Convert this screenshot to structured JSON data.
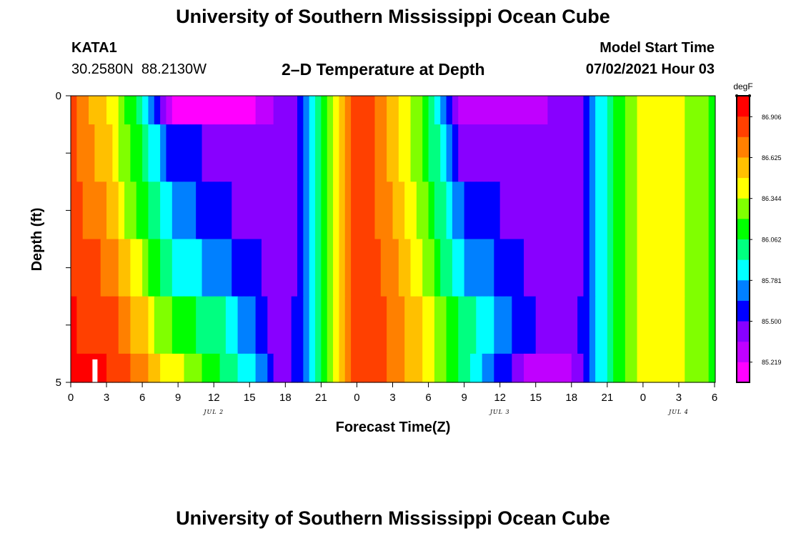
{
  "header": {
    "title": "University of Southern Mississippi Ocean Cube",
    "station_id": "KATA1",
    "station_coords": "30.2580N  88.2130W",
    "plot_title": "2–D Temperature at Depth",
    "model_start_label": "Model Start Time",
    "model_start_value": "07/02/2021 Hour 03"
  },
  "footer": {
    "title": "University of Southern Mississippi Ocean Cube"
  },
  "chart_data": {
    "type": "heatmap",
    "title": "2–D Temperature at Depth",
    "xlabel": "Forecast Time(Z)",
    "ylabel": "Depth (ft)",
    "xlim": [
      0,
      54
    ],
    "ylim": [
      5,
      0
    ],
    "x_tick_values": [
      0,
      3,
      6,
      9,
      12,
      15,
      18,
      21,
      24,
      27,
      30,
      33,
      36,
      39,
      42,
      45,
      48,
      51,
      54
    ],
    "x_tick_labels": [
      "0",
      "3",
      "6",
      "9",
      "12",
      "15",
      "18",
      "21",
      "0",
      "3",
      "6",
      "9",
      "12",
      "15",
      "18",
      "21",
      "0",
      "3",
      "6"
    ],
    "y_tick_values": [
      0,
      1,
      2,
      3,
      4,
      5
    ],
    "y_tick_labels": [
      "0",
      "",
      "",
      "",
      "",
      "5"
    ],
    "date_labels": [
      {
        "x": 12,
        "text": "JUL 2"
      },
      {
        "x": 36,
        "text": "JUL 3"
      },
      {
        "x": 51,
        "text": "JUL 4"
      }
    ],
    "depth_layers": [
      {
        "depth_range": [
          0.0,
          0.5
        ],
        "segments": [
          [
            0,
            86.8
          ],
          [
            3,
            86.5
          ],
          [
            6,
            85.98
          ],
          [
            7.5,
            85.45
          ],
          [
            8.5,
            85.2
          ],
          [
            12,
            85.18
          ],
          [
            15,
            85.2
          ],
          [
            17.5,
            85.38
          ],
          [
            19.5,
            85.55
          ],
          [
            20,
            85.8
          ],
          [
            21,
            86.05
          ],
          [
            24,
            86.9
          ],
          [
            27,
            86.6
          ],
          [
            30,
            86.1
          ],
          [
            31.5,
            85.65
          ],
          [
            32,
            85.4
          ],
          [
            33,
            85.33
          ],
          [
            39,
            85.35
          ],
          [
            42,
            85.38
          ],
          [
            43.5,
            85.6
          ],
          [
            44.5,
            85.85
          ],
          [
            46,
            86.15
          ],
          [
            48,
            86.4
          ],
          [
            51,
            86.38
          ],
          [
            54,
            86.15
          ]
        ]
      },
      {
        "depth_range": [
          0.5,
          1.5
        ],
        "segments": [
          [
            0,
            86.82
          ],
          [
            3,
            86.55
          ],
          [
            4.5,
            86.3
          ],
          [
            6,
            86.05
          ],
          [
            7.5,
            85.75
          ],
          [
            8.5,
            85.55
          ],
          [
            12,
            85.48
          ],
          [
            15,
            85.4
          ],
          [
            17.5,
            85.38
          ],
          [
            19.5,
            85.55
          ],
          [
            20,
            85.8
          ],
          [
            21,
            86.05
          ],
          [
            24,
            86.9
          ],
          [
            27,
            86.6
          ],
          [
            30,
            86.1
          ],
          [
            31.5,
            85.75
          ],
          [
            32,
            85.55
          ],
          [
            33,
            85.45
          ],
          [
            39,
            85.38
          ],
          [
            42,
            85.38
          ],
          [
            43.5,
            85.6
          ],
          [
            44.5,
            85.85
          ],
          [
            46,
            86.15
          ],
          [
            48,
            86.4
          ],
          [
            51,
            86.38
          ],
          [
            54,
            86.15
          ]
        ]
      },
      {
        "depth_range": [
          1.5,
          2.5
        ],
        "segments": [
          [
            0,
            86.85
          ],
          [
            3,
            86.65
          ],
          [
            5,
            86.3
          ],
          [
            6.5,
            86.05
          ],
          [
            8,
            85.85
          ],
          [
            9,
            85.75
          ],
          [
            12,
            85.55
          ],
          [
            15,
            85.45
          ],
          [
            17.5,
            85.38
          ],
          [
            19.5,
            85.55
          ],
          [
            20,
            85.8
          ],
          [
            21,
            86.05
          ],
          [
            24,
            86.92
          ],
          [
            27,
            86.65
          ],
          [
            30,
            86.2
          ],
          [
            31.5,
            85.9
          ],
          [
            33,
            85.65
          ],
          [
            36,
            85.5
          ],
          [
            39,
            85.4
          ],
          [
            42,
            85.38
          ],
          [
            43.5,
            85.6
          ],
          [
            44.5,
            85.85
          ],
          [
            46,
            86.15
          ],
          [
            48,
            86.4
          ],
          [
            51,
            86.38
          ],
          [
            54,
            86.15
          ]
        ]
      },
      {
        "depth_range": [
          2.5,
          3.5
        ],
        "segments": [
          [
            0,
            86.88
          ],
          [
            3,
            86.75
          ],
          [
            5.5,
            86.45
          ],
          [
            7,
            86.1
          ],
          [
            9,
            85.85
          ],
          [
            12,
            85.75
          ],
          [
            14,
            85.6
          ],
          [
            16,
            85.5
          ],
          [
            17.5,
            85.4
          ],
          [
            19.5,
            85.55
          ],
          [
            20,
            85.8
          ],
          [
            21,
            86.05
          ],
          [
            24,
            86.92
          ],
          [
            27,
            86.7
          ],
          [
            30,
            86.3
          ],
          [
            31.5,
            86.0
          ],
          [
            33,
            85.8
          ],
          [
            36,
            85.6
          ],
          [
            39,
            85.45
          ],
          [
            42,
            85.4
          ],
          [
            43.5,
            85.6
          ],
          [
            44.5,
            85.85
          ],
          [
            46,
            86.15
          ],
          [
            48,
            86.4
          ],
          [
            51,
            86.38
          ],
          [
            54,
            86.15
          ]
        ]
      },
      {
        "depth_range": [
          3.5,
          4.5
        ],
        "segments": [
          [
            0,
            86.92
          ],
          [
            3,
            86.85
          ],
          [
            6,
            86.55
          ],
          [
            7.5,
            86.3
          ],
          [
            9,
            86.15
          ],
          [
            12,
            86.0
          ],
          [
            14,
            85.8
          ],
          [
            16,
            85.55
          ],
          [
            17.5,
            85.45
          ],
          [
            19.5,
            85.55
          ],
          [
            20,
            85.8
          ],
          [
            21,
            86.05
          ],
          [
            24,
            86.92
          ],
          [
            27,
            86.75
          ],
          [
            30,
            86.4
          ],
          [
            32,
            86.1
          ],
          [
            34,
            85.95
          ],
          [
            36,
            85.7
          ],
          [
            39,
            85.5
          ],
          [
            42,
            85.42
          ],
          [
            43.5,
            85.6
          ],
          [
            44.5,
            85.85
          ],
          [
            46,
            86.15
          ],
          [
            48,
            86.4
          ],
          [
            51,
            86.38
          ],
          [
            54,
            86.15
          ]
        ]
      },
      {
        "depth_range": [
          4.5,
          5.0
        ],
        "segments": [
          [
            0,
            86.95
          ],
          [
            3,
            86.92
          ],
          [
            6,
            86.7
          ],
          [
            8,
            86.45
          ],
          [
            10,
            86.3
          ],
          [
            12,
            86.1
          ],
          [
            14,
            85.95
          ],
          [
            16,
            85.7
          ],
          [
            17.5,
            85.45
          ],
          [
            19.5,
            85.55
          ],
          [
            20,
            85.8
          ],
          [
            21,
            86.05
          ],
          [
            24,
            86.92
          ],
          [
            27,
            86.75
          ],
          [
            30,
            86.4
          ],
          [
            32,
            86.1
          ],
          [
            34,
            85.85
          ],
          [
            36.5,
            85.55
          ],
          [
            38,
            85.35
          ],
          [
            42,
            85.35
          ],
          [
            43.5,
            85.6
          ],
          [
            44.5,
            85.85
          ],
          [
            46,
            86.15
          ],
          [
            48,
            86.4
          ],
          [
            51,
            86.38
          ],
          [
            54,
            86.15
          ]
        ]
      }
    ],
    "marker": {
      "x": 2,
      "depth_range": [
        4.6,
        5.0
      ],
      "color": "#ffffff"
    },
    "colorbar": {
      "label": "degF",
      "min": 85.08,
      "max": 87.05,
      "tick_values": [
        86.906,
        86.625,
        86.344,
        86.062,
        85.781,
        85.5,
        85.219
      ],
      "tick_labels": [
        "86.906",
        "86.625",
        "86.344",
        "86.062",
        "85.781",
        "85.500",
        "85.219"
      ],
      "colors": [
        "#ff00ff",
        "#c000ff",
        "#8800ff",
        "#0000ff",
        "#0080ff",
        "#00ffff",
        "#00ff80",
        "#00ff00",
        "#80ff00",
        "#ffff00",
        "#ffc000",
        "#ff8000",
        "#ff4000",
        "#ff0000"
      ]
    }
  }
}
